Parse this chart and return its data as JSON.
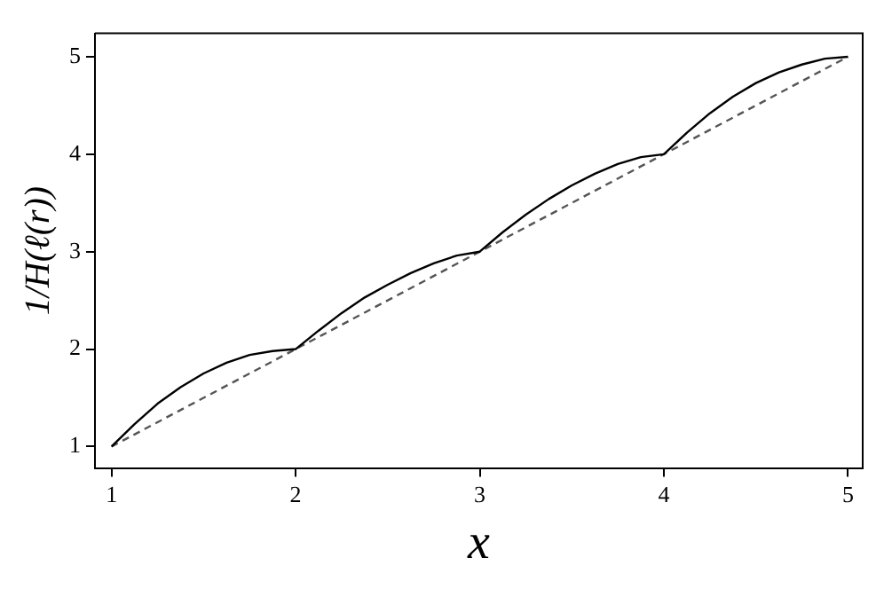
{
  "chart_data": {
    "type": "line",
    "xlabel": "x",
    "ylabel": "1/H(ℓ(r))",
    "xlim": [
      0.91,
      5.08
    ],
    "ylim": [
      0.78,
      5.24
    ],
    "xticks": [
      1,
      2,
      3,
      4,
      5
    ],
    "yticks": [
      1,
      2,
      3,
      4,
      5
    ],
    "grid": false,
    "legend": false,
    "marker": "none",
    "series": [
      {
        "color": "#000000",
        "line_style": "solid",
        "x": [
          1,
          1.125,
          1.25,
          1.375,
          1.5,
          1.625,
          1.75,
          1.875,
          2,
          2.125,
          2.25,
          2.375,
          2.5,
          2.625,
          2.75,
          2.875,
          3,
          3.125,
          3.25,
          3.375,
          3.5,
          3.625,
          3.75,
          3.875,
          4,
          4.125,
          4.25,
          4.375,
          4.5,
          4.625,
          4.75,
          4.875,
          5
        ],
        "values": [
          1,
          1.23,
          1.44,
          1.61,
          1.75,
          1.86,
          1.94,
          1.98,
          2,
          2.19,
          2.37,
          2.53,
          2.66,
          2.78,
          2.88,
          2.96,
          3,
          3.2,
          3.38,
          3.54,
          3.68,
          3.8,
          3.9,
          3.97,
          4,
          4.22,
          4.42,
          4.59,
          4.73,
          4.84,
          4.92,
          4.98,
          5
        ]
      },
      {
        "color": "#555555",
        "line_style": "dashed",
        "x": [
          1,
          5
        ],
        "values": [
          1,
          5
        ]
      }
    ]
  }
}
